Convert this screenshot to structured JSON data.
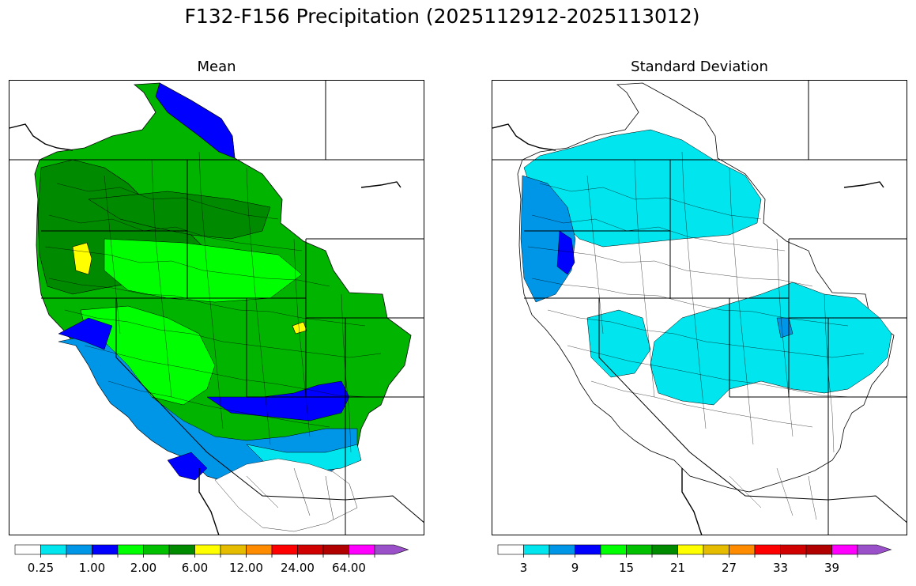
{
  "figure": {
    "title": "F132-F156 Precipitation (2025112912-2025113012)"
  },
  "panels": [
    {
      "subtitle": "Mean"
    },
    {
      "subtitle": "Standard Deviation"
    }
  ],
  "colorbar": {
    "colors": [
      "#ffffff",
      "#00e5ee",
      "#0096e8",
      "#0000ff",
      "#00ff00",
      "#00c000",
      "#008a00",
      "#ffff00",
      "#e6bc00",
      "#ff8c00",
      "#ff0000",
      "#d00000",
      "#b00000",
      "#ff00ff",
      "#9a50c8"
    ],
    "mean_ticks": [
      "0.25",
      "1.00",
      "2.00",
      "6.00",
      "12.00",
      "24.00",
      "64.00"
    ],
    "std_ticks": [
      "3",
      "9",
      "15",
      "21",
      "27",
      "33",
      "39"
    ]
  },
  "legend_colors": {
    "green_dark": "#008a00",
    "green": "#00b400",
    "green_bright": "#00ff00",
    "blue_light": "#00e5ee",
    "blue_mid": "#0096e8",
    "blue_dark": "#0000ff",
    "yellow": "#ffff00"
  }
}
